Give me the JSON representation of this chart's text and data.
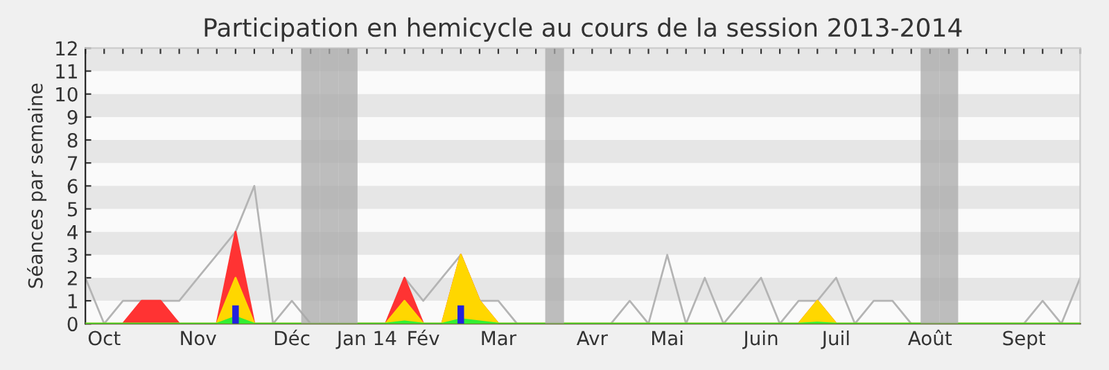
{
  "chart_data": {
    "type": "area",
    "title": "Participation en hemicycle au cours de la session 2013-2014",
    "ylabel": "Séances par semaine",
    "categories": [
      null,
      "Oct",
      null,
      null,
      null,
      null,
      "Nov",
      null,
      null,
      null,
      null,
      "Déc",
      null,
      null,
      null,
      "Jan 14",
      null,
      null,
      "Fév",
      null,
      null,
      null,
      "Mar",
      null,
      null,
      null,
      null,
      "Avr",
      null,
      null,
      null,
      "Mai",
      null,
      null,
      null,
      null,
      "Juin",
      null,
      null,
      null,
      "Juil",
      null,
      null,
      null,
      null,
      "Août",
      null,
      null,
      null,
      null,
      "Sept",
      null,
      null,
      null
    ],
    "series": [
      {
        "type": "line",
        "color": "#b4b4b4",
        "values": [
          2,
          0,
          1,
          1,
          1,
          1,
          2,
          3,
          4,
          6,
          0,
          1,
          0,
          0,
          0,
          0,
          0,
          2,
          1,
          2,
          3,
          1,
          1,
          0,
          0,
          0,
          0,
          0,
          0,
          1,
          0,
          3,
          0,
          2,
          0,
          1,
          2,
          0,
          1,
          1,
          2,
          0,
          1,
          1,
          0,
          0,
          0,
          0,
          0,
          0,
          0,
          1,
          0,
          2
        ]
      },
      {
        "color": "#ff3333",
        "values": [
          0,
          0,
          0,
          1,
          1,
          0,
          0,
          0,
          4,
          0,
          0,
          0,
          0,
          0,
          0,
          0,
          0,
          2,
          0,
          0,
          3,
          1,
          0,
          0,
          0,
          0,
          0,
          0,
          0,
          0,
          0,
          0,
          0,
          0,
          0,
          0,
          0,
          0,
          0,
          1,
          0,
          0,
          0,
          0,
          0,
          0,
          0,
          0,
          0,
          0,
          0,
          0,
          0,
          0
        ]
      },
      {
        "color": "#ffd700",
        "values": [
          0,
          0,
          0,
          0,
          0,
          0,
          0,
          0,
          2,
          0,
          0,
          0,
          0,
          0,
          0,
          0,
          0,
          1,
          0,
          0,
          3,
          1,
          0,
          0,
          0,
          0,
          0,
          0,
          0,
          0,
          0,
          0,
          0,
          0,
          0,
          0,
          0,
          0,
          0,
          1,
          0,
          0,
          0,
          0,
          0,
          0,
          0,
          0,
          0,
          0,
          0,
          0,
          0,
          0
        ]
      },
      {
        "color": "#33ee33",
        "values": [
          0,
          0,
          0,
          0,
          0,
          0,
          0,
          0,
          0.3,
          0,
          0,
          0,
          0,
          0,
          0,
          0,
          0,
          0.1,
          0,
          0,
          0.2,
          0.1,
          0,
          0,
          0,
          0,
          0,
          0,
          0,
          0,
          0,
          0,
          0,
          0,
          0,
          0,
          0,
          0,
          0,
          0.05,
          0,
          0,
          0,
          0,
          0,
          0,
          0,
          0,
          0,
          0,
          0,
          0,
          0,
          0
        ]
      },
      {
        "type": "bar",
        "color": "#2222dd",
        "values": [
          null,
          null,
          null,
          null,
          null,
          null,
          null,
          null,
          0.8,
          null,
          null,
          null,
          null,
          null,
          null,
          null,
          null,
          null,
          null,
          null,
          0.8,
          null,
          null,
          null,
          null,
          null,
          null,
          null,
          null,
          null,
          null,
          null,
          null,
          null,
          null,
          null,
          null,
          null,
          null,
          null,
          null,
          null,
          null,
          null,
          null,
          null,
          null,
          null,
          null,
          null,
          null,
          null,
          null,
          null
        ]
      },
      {
        "type": "bar",
        "color": "#a8a8a8",
        "values": [
          null,
          null,
          null,
          null,
          null,
          null,
          null,
          null,
          null,
          null,
          null,
          null,
          12,
          12,
          12,
          null,
          null,
          null,
          null,
          null,
          null,
          null,
          null,
          null,
          null,
          12,
          null,
          null,
          null,
          null,
          null,
          null,
          null,
          null,
          null,
          null,
          null,
          null,
          null,
          null,
          null,
          null,
          null,
          null,
          null,
          12,
          12,
          null,
          null,
          null,
          null,
          null,
          null,
          null
        ]
      }
    ],
    "ylim": [
      0,
      12
    ],
    "yticks": [
      0,
      1,
      2,
      3,
      4,
      5,
      6,
      7,
      8,
      9,
      10,
      11,
      12
    ],
    "marker": "none"
  }
}
